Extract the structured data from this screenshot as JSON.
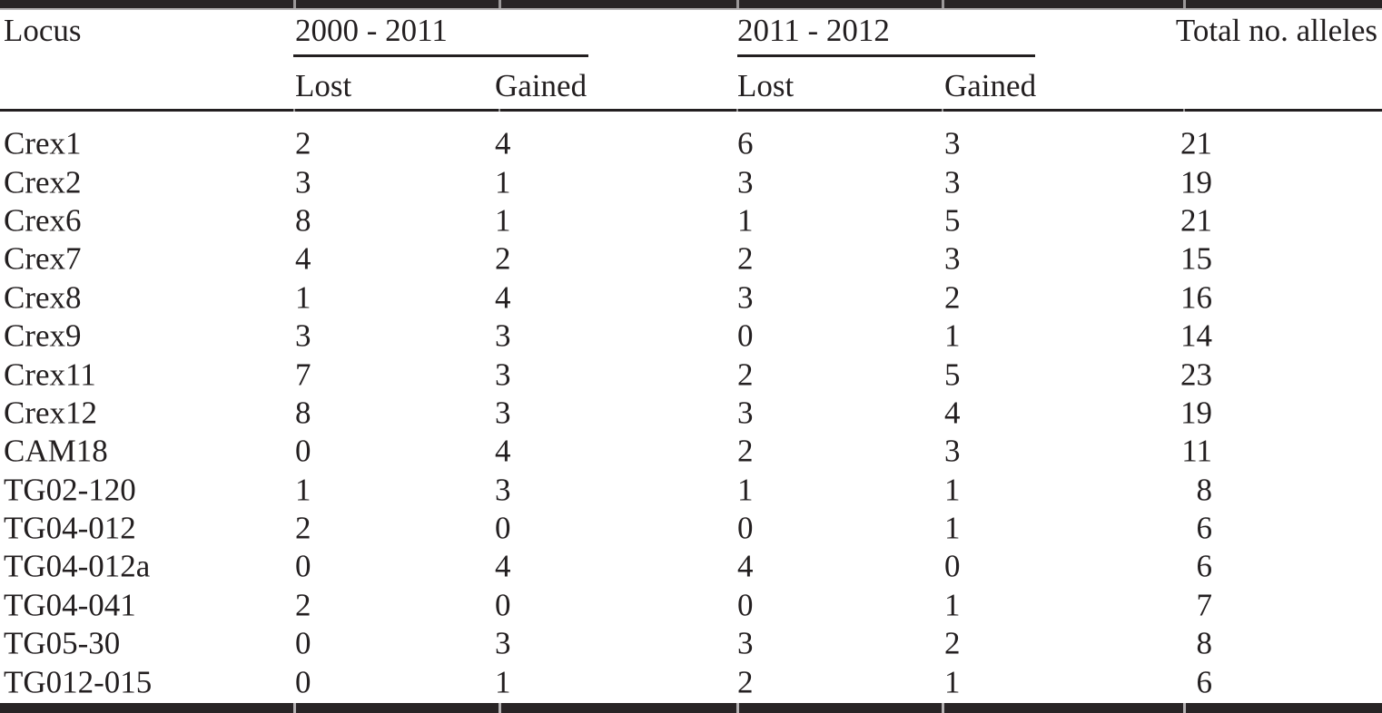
{
  "table": {
    "title_semantic": "Alleles lost and gained per locus",
    "columns": {
      "locus": "Locus",
      "period1": "2000 - 2011",
      "period2": "2011 - 2012",
      "lost": "Lost",
      "gained": "Gained",
      "total": "Total no. alleles"
    },
    "rows": [
      {
        "locus": "Crex1",
        "p1_lost": "2",
        "p1_gained": "4",
        "p2_lost": "6",
        "p2_gained": "3",
        "total": "21"
      },
      {
        "locus": "Crex2",
        "p1_lost": "3",
        "p1_gained": "1",
        "p2_lost": "3",
        "p2_gained": "3",
        "total": "19"
      },
      {
        "locus": "Crex6",
        "p1_lost": "8",
        "p1_gained": "1",
        "p2_lost": "1",
        "p2_gained": "5",
        "total": "21"
      },
      {
        "locus": "Crex7",
        "p1_lost": "4",
        "p1_gained": "2",
        "p2_lost": "2",
        "p2_gained": "3",
        "total": "15"
      },
      {
        "locus": "Crex8",
        "p1_lost": "1",
        "p1_gained": "4",
        "p2_lost": "3",
        "p2_gained": "2",
        "total": "16"
      },
      {
        "locus": "Crex9",
        "p1_lost": "3",
        "p1_gained": "3",
        "p2_lost": "0",
        "p2_gained": "1",
        "total": "14"
      },
      {
        "locus": "Crex11",
        "p1_lost": "7",
        "p1_gained": "3",
        "p2_lost": "2",
        "p2_gained": "5",
        "total": "23"
      },
      {
        "locus": "Crex12",
        "p1_lost": "8",
        "p1_gained": "3",
        "p2_lost": "3",
        "p2_gained": "4",
        "total": "19"
      },
      {
        "locus": "CAM18",
        "p1_lost": "0",
        "p1_gained": "4",
        "p2_lost": "2",
        "p2_gained": "3",
        "total": "11"
      },
      {
        "locus": "TG02-120",
        "p1_lost": "1",
        "p1_gained": "3",
        "p2_lost": "1",
        "p2_gained": "1",
        "total": "8"
      },
      {
        "locus": "TG04-012",
        "p1_lost": "2",
        "p1_gained": "0",
        "p2_lost": "0",
        "p2_gained": "1",
        "total": "6"
      },
      {
        "locus": "TG04-012a",
        "p1_lost": "0",
        "p1_gained": "4",
        "p2_lost": "4",
        "p2_gained": "0",
        "total": "6"
      },
      {
        "locus": "TG04-041",
        "p1_lost": "2",
        "p1_gained": "0",
        "p2_lost": "0",
        "p2_gained": "1",
        "total": "7"
      },
      {
        "locus": "TG05-30",
        "p1_lost": "0",
        "p1_gained": "3",
        "p2_lost": "3",
        "p2_gained": "2",
        "total": "8"
      },
      {
        "locus": "TG012-015",
        "p1_lost": "0",
        "p1_gained": "1",
        "p2_lost": "2",
        "p2_gained": "1",
        "total": "6"
      }
    ]
  },
  "colors": {
    "text": "#231f20",
    "rule": "#282425",
    "background": "#ffffff"
  }
}
